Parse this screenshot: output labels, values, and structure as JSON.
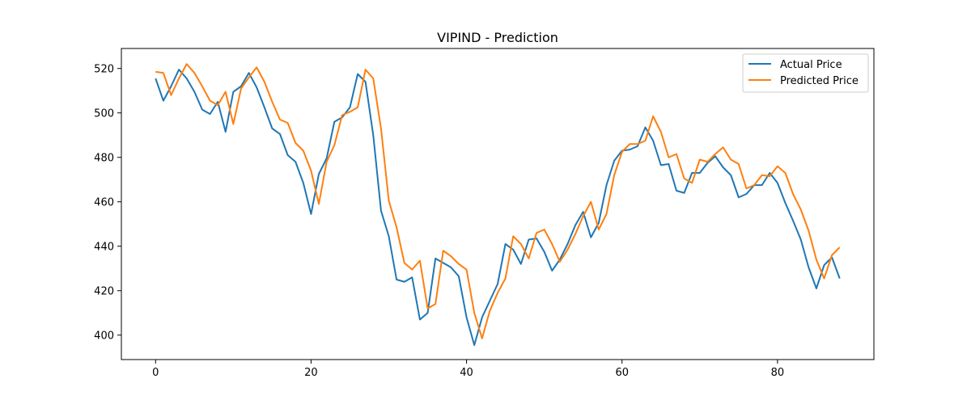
{
  "chart_data": {
    "type": "line",
    "title": "VIPIND - Prediction",
    "xlabel": "",
    "ylabel": "",
    "xlim": [
      -4.4,
      92.4
    ],
    "ylim": [
      389,
      529
    ],
    "xticks": [
      0,
      20,
      40,
      60,
      80
    ],
    "yticks": [
      400,
      420,
      440,
      460,
      480,
      500,
      520
    ],
    "grid": false,
    "legend_position": "top-right",
    "series": [
      {
        "name": "Actual Price",
        "color": "#1f77b4",
        "values": [
          515.5,
          505.5,
          512,
          519.5,
          515.5,
          509.5,
          501.5,
          499.5,
          505,
          491.5,
          509.5,
          512,
          518,
          511.5,
          502.5,
          493,
          490.5,
          481,
          478,
          468.5,
          454.5,
          472.5,
          479.5,
          496,
          498,
          502.5,
          517.5,
          514,
          490,
          456,
          444.5,
          425,
          424,
          426,
          407,
          410,
          434.5,
          432.5,
          430.5,
          426.5,
          408,
          395.5,
          408,
          415.5,
          423,
          441,
          438.5,
          432,
          443,
          443.5,
          437.5,
          429,
          434,
          441,
          449.5,
          455.5,
          444,
          450.5,
          467.5,
          478.5,
          483,
          483.5,
          485,
          493.5,
          487.5,
          476.5,
          477,
          465,
          464,
          473,
          473,
          477.5,
          480.5,
          475.5,
          472,
          462,
          463.5,
          467.5,
          467.5,
          473,
          468.5,
          459.5,
          451.5,
          443,
          430.5,
          421,
          431.5,
          435,
          425.5
        ]
      },
      {
        "name": "Predicted Price",
        "color": "#ff7f0e",
        "values": [
          518.5,
          518,
          508,
          515.5,
          522,
          518,
          512,
          505.5,
          503.5,
          509.5,
          495,
          511,
          516,
          520.5,
          514,
          505,
          497,
          495.5,
          486.5,
          483,
          474,
          459,
          478,
          485.5,
          499,
          500.5,
          502.5,
          519.5,
          515.5,
          493,
          460.5,
          448.5,
          432.5,
          429.5,
          433.5,
          412,
          414,
          438,
          435.5,
          432,
          429.5,
          410,
          398.5,
          411,
          419,
          425.5,
          444.5,
          441,
          434.5,
          446,
          447.5,
          441,
          433,
          438.5,
          445.5,
          453.5,
          460,
          447.5,
          454.5,
          472,
          482.5,
          486,
          486,
          487.5,
          498.5,
          491.5,
          480,
          481.5,
          470.5,
          468.5,
          479,
          478,
          481.5,
          484.5,
          479,
          477,
          466,
          467.5,
          472,
          471.5,
          476,
          473,
          463.5,
          456.5,
          447,
          434,
          425.5,
          436,
          439.5
        ]
      }
    ]
  }
}
